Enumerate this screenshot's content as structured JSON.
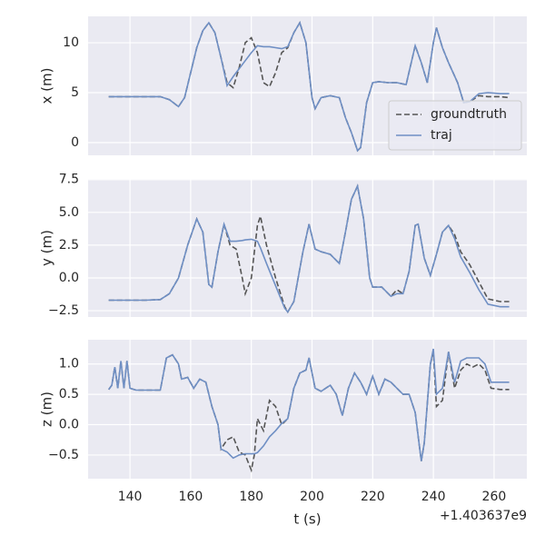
{
  "chart_data": [
    {
      "type": "line",
      "ylabel": "x (m)",
      "grid": true,
      "legend": "lower right",
      "xlim": [
        126.2,
        270.8
      ],
      "xticks": [
        140,
        160,
        180,
        200,
        220,
        240,
        260
      ],
      "ylim": [
        -1.27,
        12.64
      ],
      "yticks": [
        0,
        5,
        10
      ],
      "x": [
        133,
        135,
        140,
        145,
        150,
        153,
        156,
        158,
        160,
        162,
        164,
        166,
        168,
        170,
        172,
        174,
        176,
        178,
        180,
        182,
        184,
        186,
        188,
        190,
        192,
        194,
        196,
        198,
        200,
        201,
        203,
        206,
        209,
        211,
        213,
        215,
        216,
        218,
        220,
        222,
        225,
        228,
        231,
        234,
        236,
        238,
        240,
        241,
        243,
        245,
        248,
        250,
        252,
        255,
        258,
        262,
        265
      ],
      "series": [
        {
          "name": "groundtruth",
          "color": "#555555",
          "linestyle": "dashed",
          "values": [
            4.6,
            4.6,
            4.6,
            4.6,
            4.6,
            4.3,
            3.6,
            4.5,
            7,
            9.5,
            11.2,
            12,
            11,
            8.5,
            6,
            5.5,
            7.5,
            10,
            10.5,
            9,
            6,
            5.6,
            7,
            9,
            9.5,
            11,
            12,
            10,
            4.5,
            3.4,
            4.5,
            4.7,
            4.5,
            2.5,
            1,
            -0.8,
            -0.5,
            4,
            6,
            6.1,
            6,
            6,
            5.8,
            9.7,
            8,
            6,
            10,
            11.5,
            9.5,
            8,
            6,
            4,
            4.1,
            4.7,
            4.6,
            4.6,
            4.5
          ]
        },
        {
          "name": "traj",
          "color": "#6f8fc4",
          "linestyle": "solid",
          "values": [
            4.6,
            4.6,
            4.6,
            4.6,
            4.6,
            4.3,
            3.6,
            4.5,
            7,
            9.5,
            11.2,
            12,
            11,
            8.5,
            5.7,
            6.6,
            7.4,
            8.2,
            9,
            9.7,
            9.6,
            9.6,
            9.5,
            9.4,
            9.6,
            11,
            12,
            10,
            4.5,
            3.4,
            4.5,
            4.7,
            4.5,
            2.5,
            1,
            -0.8,
            -0.5,
            4,
            6,
            6.1,
            6,
            6,
            5.8,
            9.7,
            8,
            6,
            10,
            11.5,
            9.5,
            8,
            6,
            4,
            4.1,
            4.9,
            5,
            4.9,
            4.9
          ]
        }
      ]
    },
    {
      "type": "line",
      "ylabel": "y (m)",
      "grid": true,
      "xlim": [
        126.2,
        270.8
      ],
      "xticks": [
        140,
        160,
        180,
        200,
        220,
        240,
        260
      ],
      "ylim": [
        -2.98,
        7.55
      ],
      "yticks": [
        {
          "value": -2.5,
          "label": "−2.5"
        },
        {
          "value": 0,
          "label": "0.0"
        },
        {
          "value": 2.5,
          "label": "2.5"
        },
        {
          "value": 5,
          "label": "5.0"
        },
        {
          "value": 7.5,
          "label": "7.5"
        }
      ],
      "x": [
        133,
        140,
        145,
        150,
        153,
        156,
        159,
        162,
        164,
        166,
        167,
        169,
        171,
        173,
        175,
        177,
        178,
        180,
        182,
        183,
        185,
        188,
        191,
        192,
        194,
        197,
        199,
        201,
        203,
        206,
        209,
        211,
        213,
        215,
        217,
        219,
        220,
        223,
        226,
        228,
        230,
        232,
        234,
        235,
        237,
        239,
        241,
        243,
        245,
        247,
        249,
        252,
        255,
        258,
        262,
        265
      ],
      "series": [
        {
          "name": "groundtruth",
          "color": "#555555",
          "linestyle": "dashed",
          "values": [
            -1.7,
            -1.7,
            -1.7,
            -1.65,
            -1.2,
            0,
            2.5,
            4.5,
            3.5,
            -0.5,
            -0.7,
            2,
            4.1,
            2.5,
            2.2,
            0,
            -1.2,
            0,
            4,
            4.7,
            2.5,
            0,
            -2.2,
            -2.6,
            -1.8,
            2,
            4.1,
            2.2,
            2,
            1.8,
            1.1,
            3.5,
            6,
            7,
            4.5,
            0,
            -0.7,
            -0.7,
            -1.4,
            -0.9,
            -1.2,
            0.5,
            4,
            4.1,
            1.5,
            0.2,
            1.8,
            3.5,
            4,
            3.3,
            2,
            1,
            -0.3,
            -1.6,
            -1.8,
            -1.8
          ]
        },
        {
          "name": "traj",
          "color": "#6f8fc4",
          "linestyle": "solid",
          "values": [
            -1.7,
            -1.7,
            -1.7,
            -1.65,
            -1.2,
            0,
            2.5,
            4.5,
            3.5,
            -0.5,
            -0.7,
            2,
            4.1,
            2.8,
            2.8,
            2.85,
            2.9,
            2.95,
            2.8,
            2.3,
            1.1,
            -0.6,
            -2.3,
            -2.6,
            -1.8,
            2,
            4.1,
            2.2,
            2,
            1.8,
            1.1,
            3.5,
            6,
            7,
            4.5,
            0,
            -0.7,
            -0.7,
            -1.4,
            -1.2,
            -1.2,
            0.5,
            4,
            4.1,
            1.5,
            0.2,
            1.8,
            3.5,
            4,
            3,
            1.6,
            0.4,
            -0.9,
            -2,
            -2.2,
            -2.2
          ]
        }
      ]
    },
    {
      "type": "line",
      "ylabel": "z (m)",
      "xlabel": "t (s)",
      "x_offset_label": "+1.403637e9",
      "grid": true,
      "xlim": [
        126.2,
        270.8
      ],
      "xticks": [
        140,
        160,
        180,
        200,
        220,
        240,
        260
      ],
      "ylim": [
        -0.89,
        1.4
      ],
      "yticks": [
        {
          "value": -0.5,
          "label": "−0.5"
        },
        {
          "value": 0,
          "label": "0.0"
        },
        {
          "value": 0.5,
          "label": "0.5"
        },
        {
          "value": 1,
          "label": "1.0"
        }
      ],
      "x": [
        133,
        134,
        135,
        136,
        137,
        138,
        139,
        140,
        142,
        145,
        148,
        150,
        152,
        154,
        156,
        157,
        159,
        161,
        163,
        165,
        167,
        169,
        170,
        172,
        174,
        176,
        178,
        180,
        181,
        182,
        184,
        186,
        188,
        190,
        192,
        194,
        196,
        198,
        199,
        201,
        203,
        206,
        208,
        210,
        212,
        214,
        216,
        218,
        220,
        222,
        224,
        226,
        228,
        230,
        232,
        234,
        236,
        237,
        239,
        240,
        241,
        243,
        245,
        247,
        249,
        251,
        253,
        255,
        257,
        259,
        262,
        265
      ],
      "series": [
        {
          "name": "groundtruth",
          "color": "#555555",
          "linestyle": "dashed",
          "values": [
            0.58,
            0.65,
            0.95,
            0.6,
            1.05,
            0.6,
            1.05,
            0.6,
            0.57,
            0.57,
            0.57,
            0.57,
            1.1,
            1.15,
            1,
            0.75,
            0.78,
            0.6,
            0.75,
            0.7,
            0.3,
            0,
            -0.4,
            -0.25,
            -0.2,
            -0.45,
            -0.5,
            -0.75,
            -0.5,
            0.1,
            -0.1,
            0.4,
            0.3,
            0,
            0.1,
            0.6,
            0.85,
            0.9,
            1.1,
            0.6,
            0.55,
            0.65,
            0.5,
            0.15,
            0.6,
            0.85,
            0.7,
            0.5,
            0.8,
            0.5,
            0.75,
            0.7,
            0.6,
            0.5,
            0.5,
            0.2,
            -0.6,
            -0.3,
            1,
            1.2,
            0.3,
            0.4,
            1.2,
            0.6,
            0.9,
            1,
            0.95,
            1,
            0.9,
            0.6,
            0.58,
            0.58
          ]
        },
        {
          "name": "traj",
          "color": "#6f8fc4",
          "linestyle": "solid",
          "values": [
            0.58,
            0.65,
            0.95,
            0.6,
            1.05,
            0.6,
            1.05,
            0.6,
            0.57,
            0.57,
            0.57,
            0.57,
            1.1,
            1.15,
            1,
            0.75,
            0.78,
            0.6,
            0.75,
            0.7,
            0.3,
            0,
            -0.4,
            -0.45,
            -0.55,
            -0.5,
            -0.48,
            -0.48,
            -0.48,
            -0.46,
            -0.35,
            -0.2,
            -0.1,
            0.02,
            0.1,
            0.6,
            0.85,
            0.9,
            1.1,
            0.6,
            0.55,
            0.65,
            0.5,
            0.15,
            0.6,
            0.85,
            0.7,
            0.5,
            0.8,
            0.5,
            0.75,
            0.7,
            0.6,
            0.5,
            0.5,
            0.2,
            -0.6,
            -0.3,
            1,
            1.25,
            0.5,
            0.6,
            1.2,
            0.7,
            1.05,
            1.1,
            1.1,
            1.1,
            1,
            0.7,
            0.7,
            0.7
          ]
        }
      ]
    }
  ]
}
